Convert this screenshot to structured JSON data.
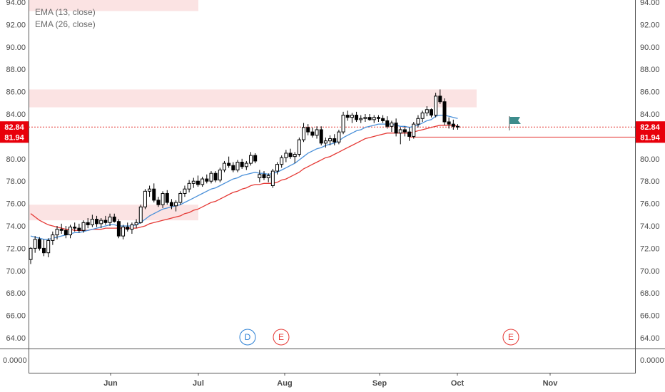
{
  "legend": {
    "ema_short": "EMA (13, close)",
    "ema_long": "EMA (26, close)"
  },
  "colors": {
    "up": "#ffffff",
    "down": "#000000",
    "wick": "#000000",
    "ema_short": "#4a90d9",
    "ema_long": "#e53935",
    "zone": "#fbe3e3",
    "price_line": "#e53935",
    "label_bg": "#e8000b",
    "flag": "#3d8c8c"
  },
  "chart_data": {
    "type": "candlestick",
    "title": "",
    "y_ticks": [
      "94.00",
      "92.00",
      "90.00",
      "88.00",
      "86.00",
      "84.00",
      "82.00",
      "80.00",
      "78.00",
      "76.00",
      "74.00",
      "72.00",
      "70.00",
      "68.00",
      "66.00",
      "64.00"
    ],
    "x_ticks": [
      "Jun",
      "Jul",
      "Aug",
      "Sep",
      "Oct",
      "Nov"
    ],
    "ylim": [
      62.5,
      94.6
    ],
    "price_labels": [
      {
        "value": 82.84,
        "text": "82.84",
        "line": "dotted"
      },
      {
        "value": 81.94,
        "text": "81.94",
        "line": "solid"
      }
    ],
    "zones": [
      {
        "from": 93.2,
        "to": 95.0
      },
      {
        "from": 84.6,
        "to": 86.2
      },
      {
        "from": 74.5,
        "to": 75.9
      }
    ],
    "events": [
      {
        "label": "D",
        "kind": "dividend",
        "color": "#2a7fd4"
      },
      {
        "label": "E",
        "kind": "earnings",
        "color": "#e53935"
      },
      {
        "label": "E",
        "kind": "earnings",
        "color": "#e53935"
      }
    ],
    "candles": [
      [
        71.0,
        72.1,
        70.6,
        72.0
      ],
      [
        72.0,
        73.1,
        71.6,
        72.8
      ],
      [
        72.8,
        73.0,
        71.8,
        72.0
      ],
      [
        72.0,
        72.8,
        71.3,
        71.6
      ],
      [
        71.6,
        72.9,
        71.2,
        72.7
      ],
      [
        72.7,
        73.5,
        72.3,
        73.2
      ],
      [
        73.2,
        74.0,
        72.8,
        73.7
      ],
      [
        73.7,
        74.2,
        73.3,
        73.6
      ],
      [
        73.6,
        74.0,
        72.9,
        73.2
      ],
      [
        73.2,
        74.1,
        72.9,
        73.9
      ],
      [
        73.9,
        74.3,
        73.5,
        73.8
      ],
      [
        73.8,
        74.2,
        73.4,
        73.6
      ],
      [
        73.6,
        74.5,
        73.4,
        74.3
      ],
      [
        74.3,
        74.7,
        73.8,
        74.1
      ],
      [
        74.1,
        75.0,
        73.9,
        74.6
      ],
      [
        74.6,
        74.9,
        73.9,
        74.2
      ],
      [
        74.2,
        74.7,
        73.8,
        74.5
      ],
      [
        74.5,
        74.9,
        74.1,
        74.3
      ],
      [
        74.3,
        75.1,
        74.0,
        74.8
      ],
      [
        74.8,
        75.1,
        74.3,
        74.4
      ],
      [
        74.4,
        74.6,
        72.9,
        73.1
      ],
      [
        73.1,
        74.1,
        72.8,
        73.9
      ],
      [
        73.9,
        74.3,
        73.5,
        73.7
      ],
      [
        73.7,
        74.3,
        73.3,
        74.1
      ],
      [
        74.1,
        74.6,
        73.8,
        74.3
      ],
      [
        74.3,
        75.9,
        74.2,
        75.7
      ],
      [
        75.7,
        77.3,
        75.5,
        77.1
      ],
      [
        77.1,
        77.6,
        76.6,
        77.3
      ],
      [
        77.3,
        77.8,
        76.1,
        76.3
      ],
      [
        76.3,
        76.6,
        75.7,
        75.9
      ],
      [
        75.9,
        77.1,
        75.6,
        76.9
      ],
      [
        76.9,
        77.2,
        75.9,
        76.1
      ],
      [
        76.1,
        76.4,
        75.5,
        75.8
      ],
      [
        75.8,
        76.3,
        75.3,
        76.1
      ],
      [
        76.1,
        77.1,
        75.9,
        76.9
      ],
      [
        76.9,
        77.6,
        76.6,
        77.3
      ],
      [
        77.3,
        78.1,
        77.0,
        77.8
      ],
      [
        77.8,
        78.3,
        77.4,
        78.0
      ],
      [
        78.0,
        78.5,
        77.5,
        77.7
      ],
      [
        77.7,
        78.4,
        77.5,
        78.2
      ],
      [
        78.2,
        78.6,
        77.8,
        78.0
      ],
      [
        78.0,
        78.9,
        77.8,
        78.7
      ],
      [
        78.7,
        78.9,
        77.9,
        78.1
      ],
      [
        78.1,
        79.2,
        77.9,
        79.0
      ],
      [
        79.0,
        79.8,
        78.8,
        79.6
      ],
      [
        79.6,
        80.2,
        79.2,
        79.4
      ],
      [
        79.4,
        79.7,
        78.8,
        79.0
      ],
      [
        79.0,
        79.9,
        78.8,
        79.7
      ],
      [
        79.7,
        80.0,
        79.1,
        79.3
      ],
      [
        79.3,
        79.8,
        79.0,
        79.6
      ],
      [
        79.6,
        80.6,
        79.4,
        80.3
      ],
      [
        80.3,
        80.5,
        79.6,
        79.8
      ],
      [
        78.3,
        79.0,
        77.9,
        78.6
      ],
      [
        78.6,
        78.9,
        78.1,
        78.3
      ],
      [
        78.3,
        78.7,
        77.9,
        78.5
      ],
      [
        77.6,
        79.1,
        77.4,
        78.9
      ],
      [
        78.9,
        79.7,
        78.6,
        79.5
      ],
      [
        79.5,
        80.3,
        79.2,
        80.1
      ],
      [
        80.1,
        80.8,
        79.7,
        80.5
      ],
      [
        80.5,
        80.9,
        80.0,
        80.2
      ],
      [
        80.2,
        80.6,
        79.6,
        80.4
      ],
      [
        80.4,
        81.9,
        80.2,
        81.7
      ],
      [
        81.7,
        83.2,
        81.5,
        82.8
      ],
      [
        82.8,
        83.1,
        82.1,
        82.4
      ],
      [
        82.4,
        82.8,
        81.9,
        82.1
      ],
      [
        82.1,
        82.9,
        81.8,
        82.6
      ],
      [
        82.6,
        82.9,
        81.2,
        81.4
      ],
      [
        81.4,
        81.9,
        81.0,
        81.6
      ],
      [
        81.6,
        82.1,
        81.2,
        81.8
      ],
      [
        81.8,
        82.2,
        81.2,
        81.5
      ],
      [
        81.5,
        82.6,
        81.3,
        82.4
      ],
      [
        82.4,
        84.2,
        82.2,
        83.9
      ],
      [
        83.9,
        84.3,
        83.4,
        83.7
      ],
      [
        83.7,
        84.1,
        83.2,
        83.9
      ],
      [
        83.9,
        84.2,
        83.3,
        83.5
      ],
      [
        83.5,
        83.9,
        83.2,
        83.6
      ],
      [
        83.6,
        84.0,
        83.3,
        83.7
      ],
      [
        83.7,
        84.0,
        83.4,
        83.5
      ],
      [
        83.5,
        83.9,
        83.2,
        83.7
      ],
      [
        83.7,
        83.9,
        83.3,
        83.6
      ],
      [
        83.6,
        83.9,
        83.2,
        83.4
      ],
      [
        83.4,
        83.8,
        82.7,
        82.9
      ],
      [
        82.9,
        83.4,
        82.4,
        83.2
      ],
      [
        83.2,
        83.6,
        82.0,
        82.3
      ],
      [
        82.3,
        82.8,
        81.3,
        82.6
      ],
      [
        82.6,
        82.9,
        82.0,
        82.4
      ],
      [
        82.4,
        82.8,
        81.6,
        82.0
      ],
      [
        82.0,
        83.3,
        81.8,
        83.1
      ],
      [
        83.1,
        83.9,
        82.8,
        83.6
      ],
      [
        83.6,
        84.3,
        83.3,
        84.1
      ],
      [
        84.1,
        84.7,
        83.8,
        84.4
      ],
      [
        84.4,
        84.5,
        83.7,
        83.9
      ],
      [
        83.9,
        85.9,
        83.7,
        85.6
      ],
      [
        85.6,
        86.2,
        84.9,
        85.1
      ],
      [
        85.1,
        85.4,
        83.0,
        83.3
      ],
      [
        83.3,
        83.7,
        82.7,
        83.1
      ],
      [
        83.1,
        83.5,
        82.6,
        82.9
      ],
      [
        82.9,
        83.1,
        82.6,
        82.84
      ]
    ],
    "ema13": [
      73.1,
      73.0,
      72.9,
      72.8,
      72.8,
      72.9,
      73.0,
      73.1,
      73.2,
      73.3,
      73.4,
      73.4,
      73.5,
      73.6,
      73.7,
      73.8,
      73.9,
      74.0,
      74.1,
      74.1,
      74.0,
      74.0,
      74.0,
      74.0,
      74.1,
      74.3,
      74.6,
      74.9,
      75.1,
      75.3,
      75.5,
      75.6,
      75.7,
      75.8,
      75.9,
      76.1,
      76.3,
      76.5,
      76.7,
      76.9,
      77.1,
      77.3,
      77.4,
      77.6,
      77.8,
      78.0,
      78.2,
      78.3,
      78.5,
      78.6,
      78.7,
      78.8,
      78.7,
      78.7,
      78.6,
      78.7,
      78.8,
      79.0,
      79.2,
      79.4,
      79.6,
      79.9,
      80.2,
      80.5,
      80.7,
      80.9,
      81.0,
      81.2,
      81.3,
      81.4,
      81.6,
      81.9,
      82.1,
      82.3,
      82.5,
      82.6,
      82.8,
      82.9,
      83.0,
      83.1,
      83.1,
      83.1,
      83.1,
      83.0,
      82.9,
      82.9,
      82.8,
      82.9,
      83.0,
      83.2,
      83.4,
      83.5,
      83.8,
      83.9,
      83.9,
      83.8,
      83.7,
      83.6
    ],
    "ema26": [
      75.1,
      74.8,
      74.5,
      74.3,
      74.1,
      74.0,
      73.9,
      73.8,
      73.7,
      73.7,
      73.6,
      73.6,
      73.6,
      73.6,
      73.7,
      73.7,
      73.7,
      73.8,
      73.8,
      73.8,
      73.8,
      73.8,
      73.8,
      73.8,
      73.8,
      73.9,
      74.0,
      74.2,
      74.3,
      74.4,
      74.5,
      74.6,
      74.7,
      74.8,
      74.9,
      75.1,
      75.2,
      75.4,
      75.5,
      75.7,
      75.9,
      76.1,
      76.2,
      76.4,
      76.6,
      76.8,
      77.0,
      77.1,
      77.3,
      77.4,
      77.6,
      77.7,
      77.7,
      77.8,
      77.8,
      77.8,
      77.9,
      78.1,
      78.2,
      78.4,
      78.6,
      78.8,
      79.1,
      79.3,
      79.5,
      79.7,
      79.9,
      80.1,
      80.2,
      80.4,
      80.6,
      80.8,
      81.0,
      81.2,
      81.4,
      81.6,
      81.8,
      81.9,
      82.0,
      82.1,
      82.2,
      82.3,
      82.3,
      82.3,
      82.3,
      82.3,
      82.3,
      82.4,
      82.5,
      82.6,
      82.7,
      82.8,
      82.9,
      83.0,
      83.0,
      83.0,
      83.0,
      82.9
    ],
    "volume_pane": {
      "y_tick": "0.0000"
    }
  }
}
